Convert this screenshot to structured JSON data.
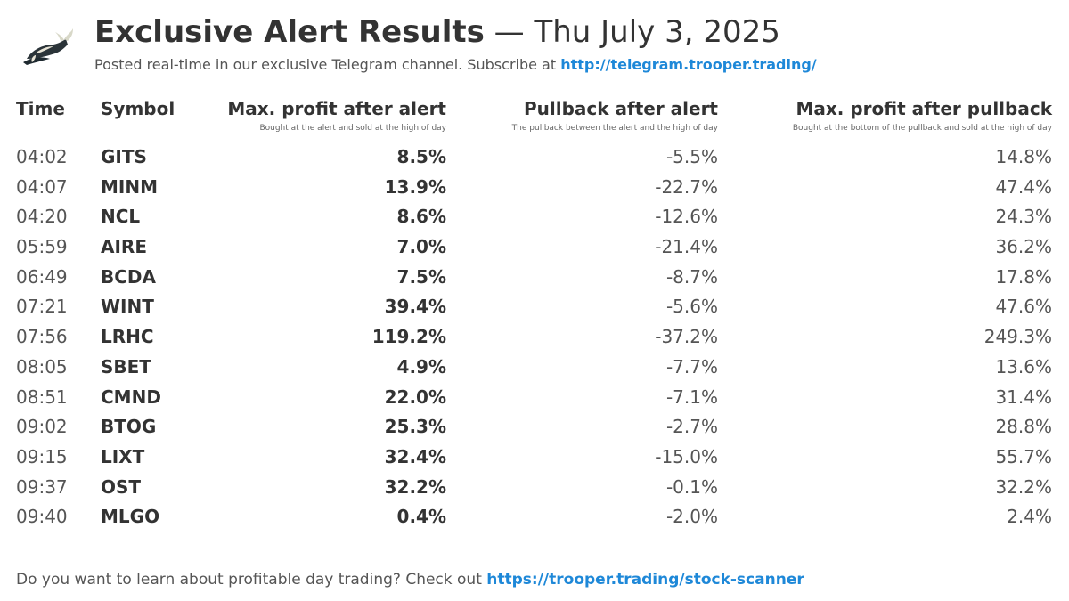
{
  "header": {
    "title_main": "Exclusive Alert Results",
    "title_dash": "—",
    "title_date": "Thu July 3, 2025",
    "subtitle_text": "Posted real-time in our exclusive Telegram channel. Subscribe at",
    "subtitle_link": "http://telegram.trooper.trading/"
  },
  "columns": {
    "time": "Time",
    "symbol": "Symbol",
    "max_profit": "Max. profit after alert",
    "max_profit_sub": "Bought at the alert and sold at the high of day",
    "pullback": "Pullback after alert",
    "pullback_sub": "The pullback between the alert and the high of day",
    "after_pullback": "Max. profit after pullback",
    "after_pullback_sub": "Bought at the bottom of the pullback and sold at the high of day"
  },
  "rows": [
    {
      "time": "04:02",
      "symbol": "GITS",
      "max": "8.5%",
      "pull": "-5.5%",
      "after": "14.8%"
    },
    {
      "time": "04:07",
      "symbol": "MINM",
      "max": "13.9%",
      "pull": "-22.7%",
      "after": "47.4%"
    },
    {
      "time": "04:20",
      "symbol": "NCL",
      "max": "8.6%",
      "pull": "-12.6%",
      "after": "24.3%"
    },
    {
      "time": "05:59",
      "symbol": "AIRE",
      "max": "7.0%",
      "pull": "-21.4%",
      "after": "36.2%"
    },
    {
      "time": "06:49",
      "symbol": "BCDA",
      "max": "7.5%",
      "pull": "-8.7%",
      "after": "17.8%"
    },
    {
      "time": "07:21",
      "symbol": "WINT",
      "max": "39.4%",
      "pull": "-5.6%",
      "after": "47.6%"
    },
    {
      "time": "07:56",
      "symbol": "LRHC",
      "max": "119.2%",
      "pull": "-37.2%",
      "after": "249.3%"
    },
    {
      "time": "08:05",
      "symbol": "SBET",
      "max": "4.9%",
      "pull": "-7.7%",
      "after": "13.6%"
    },
    {
      "time": "08:51",
      "symbol": "CMND",
      "max": "22.0%",
      "pull": "-7.1%",
      "after": "31.4%"
    },
    {
      "time": "09:02",
      "symbol": "BTOG",
      "max": "25.3%",
      "pull": "-2.7%",
      "after": "28.8%"
    },
    {
      "time": "09:15",
      "symbol": "LIXT",
      "max": "32.4%",
      "pull": "-15.0%",
      "after": "55.7%"
    },
    {
      "time": "09:37",
      "symbol": "OST",
      "max": "32.2%",
      "pull": "-0.1%",
      "after": "32.2%"
    },
    {
      "time": "09:40",
      "symbol": "MLGO",
      "max": "0.4%",
      "pull": "-2.0%",
      "after": "2.4%"
    }
  ],
  "footer": {
    "text": "Do you want to learn about profitable day trading? Check out",
    "link": "https://trooper.trading/stock-scanner"
  },
  "colors": {
    "link": "#1e88d8",
    "text": "#333333"
  },
  "logo": {
    "icon": "bull-icon"
  }
}
